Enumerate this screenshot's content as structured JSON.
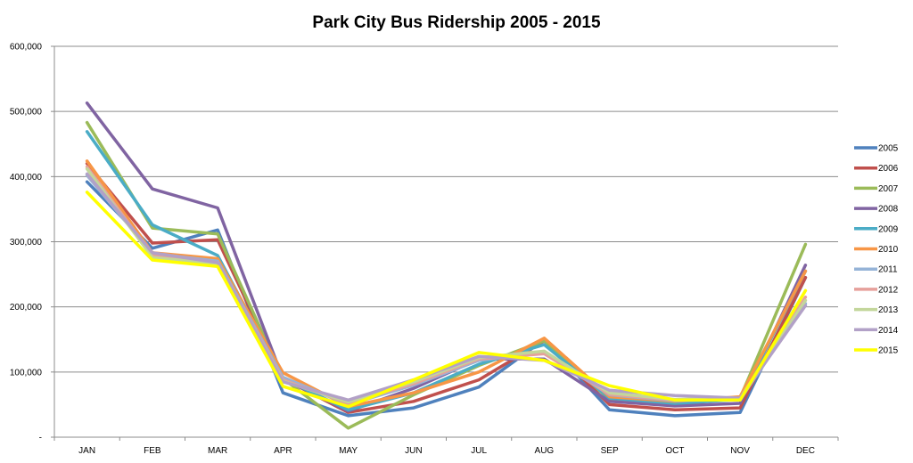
{
  "chart_data": {
    "type": "line",
    "title": "Park City Bus Ridership 2005 - 2015",
    "xlabel": "",
    "ylabel": "",
    "categories": [
      "JAN",
      "FEB",
      "MAR",
      "APR",
      "MAY",
      "JUN",
      "JUL",
      "AUG",
      "SEP",
      "OCT",
      "NOV",
      "DEC"
    ],
    "ylim": [
      0,
      600000
    ],
    "y_ticks": [
      0,
      100000,
      200000,
      300000,
      400000,
      500000,
      600000
    ],
    "y_tick_labels": [
      "-",
      "100,000",
      "200,000",
      "300,000",
      "400,000",
      "500,000",
      "600,000"
    ],
    "grid": "horizontal",
    "legend_position": "right",
    "series": [
      {
        "name": "2005",
        "color": "#4F81BD",
        "values": [
          392000,
          290000,
          318000,
          68000,
          33000,
          45000,
          77000,
          150000,
          42000,
          33000,
          38000,
          245000
        ]
      },
      {
        "name": "2006",
        "color": "#C0504D",
        "values": [
          420000,
          298000,
          303000,
          90000,
          38000,
          55000,
          88000,
          148000,
          50000,
          42000,
          45000,
          245000
        ]
      },
      {
        "name": "2007",
        "color": "#9BBB59",
        "values": [
          483000,
          321000,
          312000,
          90000,
          14000,
          65000,
          110000,
          148000,
          58000,
          50000,
          60000,
          296000
        ]
      },
      {
        "name": "2008",
        "color": "#8064A2",
        "values": [
          513000,
          381000,
          352000,
          90000,
          40000,
          75000,
          120000,
          120000,
          55000,
          48000,
          52000,
          264000
        ]
      },
      {
        "name": "2009",
        "color": "#4BACC6",
        "values": [
          469000,
          326000,
          279000,
          90000,
          42000,
          68000,
          112000,
          142000,
          60000,
          52000,
          58000,
          255000
        ]
      },
      {
        "name": "2010",
        "color": "#F79646",
        "values": [
          424000,
          283000,
          274000,
          99000,
          47000,
          68000,
          100000,
          152000,
          62000,
          55000,
          62000,
          255000
        ]
      },
      {
        "name": "2011",
        "color": "#95B3D7",
        "values": [
          402000,
          282000,
          270000,
          92000,
          50000,
          80000,
          118000,
          130000,
          65000,
          56000,
          58000,
          205000
        ]
      },
      {
        "name": "2012",
        "color": "#E6A09B",
        "values": [
          415000,
          279000,
          268000,
          88000,
          52000,
          82000,
          120000,
          128000,
          66000,
          57000,
          59000,
          215000
        ]
      },
      {
        "name": "2013",
        "color": "#C3D69B",
        "values": [
          412000,
          276000,
          266000,
          86000,
          54000,
          85000,
          122000,
          132000,
          68000,
          58000,
          60000,
          210000
        ]
      },
      {
        "name": "2014",
        "color": "#B2A1C7",
        "values": [
          404000,
          283000,
          268000,
          85000,
          57000,
          88000,
          124000,
          118000,
          72000,
          64000,
          60000,
          202000
        ]
      },
      {
        "name": "2015",
        "color": "#FFFF00",
        "values": [
          376000,
          272000,
          262000,
          78000,
          47000,
          88000,
          130000,
          118000,
          79000,
          57000,
          57000,
          225000
        ]
      }
    ]
  }
}
